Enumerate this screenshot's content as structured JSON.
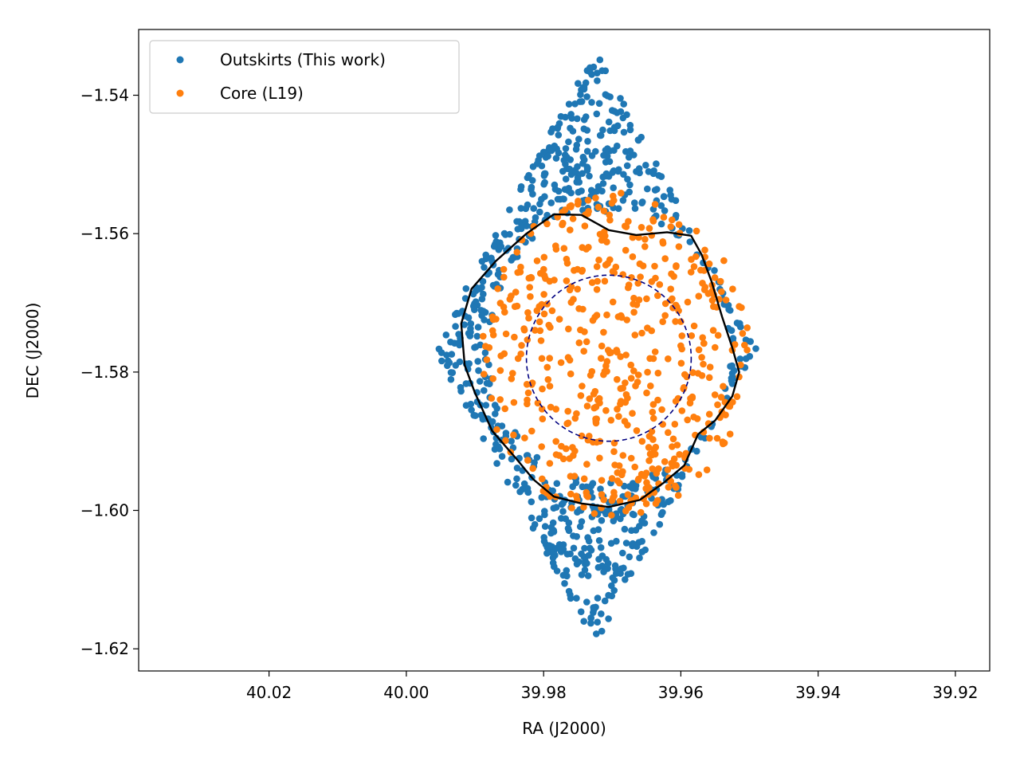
{
  "chart_data": {
    "type": "scatter",
    "title": "",
    "xlabel": "RA (J2000)",
    "ylabel": "DEC (J2000)",
    "xlim": [
      40.039,
      39.915
    ],
    "ylim": [
      -1.6232,
      -1.5305
    ],
    "x_inverted": true,
    "grid": false,
    "legend_placement": "top-left",
    "xticks": [
      "40.02",
      "40.00",
      "39.98",
      "39.96",
      "39.94",
      "39.92"
    ],
    "xtick_values": [
      40.02,
      40.0,
      39.98,
      39.96,
      39.94,
      39.92
    ],
    "yticks": [
      "−1.54",
      "−1.56",
      "−1.58",
      "−1.60",
      "−1.62"
    ],
    "ytick_values": [
      -1.54,
      -1.56,
      -1.58,
      -1.6,
      -1.62
    ],
    "series": [
      {
        "name": "Outskirts (This work)",
        "color": "#1f77b4",
        "generator": {
          "seed": 7,
          "count": 720,
          "outer": {
            "cx": 39.9725,
            "cy": -1.5765,
            "ra_half": 0.0235,
            "dec_half": 0.043,
            "ra_range": [
              40.0315,
              39.9335
            ],
            "dec_range": [
              -1.619,
              -1.5335
            ]
          },
          "exclude": {
            "cx": 39.9705,
            "cy": -1.5765,
            "r_ra": 0.0175,
            "r_dec": 0.0195
          }
        }
      },
      {
        "name": "Core (L19)",
        "color": "#ff7f0e",
        "generator": {
          "seed": 13,
          "count": 540,
          "center": {
            "cx": 39.9695,
            "cy": -1.5775,
            "r_ra": 0.0195,
            "r_dec": 0.0235
          }
        }
      }
    ],
    "annotations": [
      {
        "kind": "contour",
        "color": "#000000",
        "points": [
          [
            39.9785,
            -1.5572
          ],
          [
            39.9745,
            -1.5573
          ],
          [
            39.9705,
            -1.5595
          ],
          [
            39.9665,
            -1.5602
          ],
          [
            39.962,
            -1.5598
          ],
          [
            39.9585,
            -1.5603
          ],
          [
            39.957,
            -1.563
          ],
          [
            39.9555,
            -1.567
          ],
          [
            39.954,
            -1.572
          ],
          [
            39.9525,
            -1.5765
          ],
          [
            39.9515,
            -1.58
          ],
          [
            39.9525,
            -1.5835
          ],
          [
            39.955,
            -1.587
          ],
          [
            39.9575,
            -1.589
          ],
          [
            39.9595,
            -1.5935
          ],
          [
            39.9625,
            -1.596
          ],
          [
            39.966,
            -1.5985
          ],
          [
            39.9705,
            -1.5995
          ],
          [
            39.9745,
            -1.599
          ],
          [
            39.9785,
            -1.598
          ],
          [
            39.9815,
            -1.5955
          ],
          [
            39.984,
            -1.5925
          ],
          [
            39.9875,
            -1.5885
          ],
          [
            39.99,
            -1.583
          ],
          [
            39.9915,
            -1.579
          ],
          [
            39.992,
            -1.573
          ],
          [
            39.9905,
            -1.568
          ],
          [
            39.987,
            -1.564
          ],
          [
            39.9825,
            -1.56
          ],
          [
            39.9785,
            -1.5572
          ]
        ]
      },
      {
        "kind": "dashed-ellipse",
        "color": "#000080",
        "cx": 39.9705,
        "cy": -1.578,
        "r_ra": 0.012,
        "r_dec": 0.012
      }
    ]
  }
}
